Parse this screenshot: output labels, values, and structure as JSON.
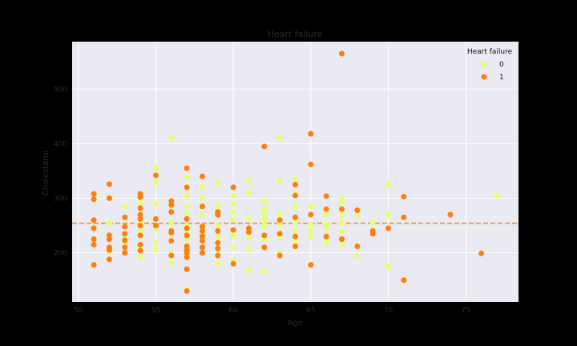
{
  "chart_data": {
    "type": "scatter",
    "title": "Heart failure",
    "xlabel": "Age",
    "ylabel": "Cholesterol",
    "xlim": [
      49.6,
      78.4
    ],
    "ylim": [
      110,
      587
    ],
    "xticks": [
      50,
      55,
      60,
      65,
      70,
      75
    ],
    "yticks": [
      200,
      300,
      400,
      500
    ],
    "grid": true,
    "plot_background": "#eaeaf2",
    "figure_background": "#000000",
    "legend": {
      "title": "Heart failure",
      "placement": "top-right"
    },
    "reference_line": {
      "axis": "y",
      "value": 254,
      "style": "dashed",
      "color": "#ff8c00"
    },
    "series": [
      {
        "name": "0",
        "color": "#e6ff70",
        "points": [
          [
            51,
            302
          ],
          [
            51,
            298
          ],
          [
            51,
            308
          ],
          [
            52,
            255
          ],
          [
            52,
            210
          ],
          [
            52,
            202
          ],
          [
            53,
            285
          ],
          [
            53,
            232
          ],
          [
            53,
            220
          ],
          [
            54,
            290
          ],
          [
            54,
            255
          ],
          [
            54,
            240
          ],
          [
            54,
            210
          ],
          [
            54,
            192
          ],
          [
            55,
            355
          ],
          [
            55,
            330
          ],
          [
            55,
            290
          ],
          [
            55,
            245
          ],
          [
            55,
            218
          ],
          [
            55,
            205
          ],
          [
            56,
            410
          ],
          [
            56,
            285
          ],
          [
            56,
            255
          ],
          [
            56,
            235
          ],
          [
            56,
            200
          ],
          [
            56,
            182
          ],
          [
            57,
            338
          ],
          [
            57,
            305
          ],
          [
            57,
            285
          ],
          [
            57,
            270
          ],
          [
            57,
            250
          ],
          [
            57,
            240
          ],
          [
            57,
            225
          ],
          [
            57,
            210
          ],
          [
            57,
            198
          ],
          [
            57,
            133
          ],
          [
            58,
            320
          ],
          [
            58,
            300
          ],
          [
            58,
            285
          ],
          [
            58,
            270
          ],
          [
            58,
            245
          ],
          [
            58,
            235
          ],
          [
            58,
            225
          ],
          [
            58,
            210
          ],
          [
            59,
            328
          ],
          [
            59,
            285
          ],
          [
            59,
            268
          ],
          [
            59,
            250
          ],
          [
            59,
            240
          ],
          [
            59,
            228
          ],
          [
            59,
            218
          ],
          [
            59,
            205
          ],
          [
            59,
            180
          ],
          [
            60,
            305
          ],
          [
            60,
            290
          ],
          [
            60,
            275
          ],
          [
            60,
            260
          ],
          [
            60,
            240
          ],
          [
            60,
            230
          ],
          [
            60,
            210
          ],
          [
            60,
            187
          ],
          [
            61,
            332
          ],
          [
            61,
            310
          ],
          [
            61,
            262
          ],
          [
            61,
            245
          ],
          [
            61,
            228
          ],
          [
            61,
            207
          ],
          [
            61,
            168
          ],
          [
            62,
            295
          ],
          [
            62,
            280
          ],
          [
            62,
            270
          ],
          [
            62,
            262
          ],
          [
            62,
            255
          ],
          [
            62,
            248
          ],
          [
            62,
            225
          ],
          [
            62,
            166
          ],
          [
            63,
            410
          ],
          [
            63,
            332
          ],
          [
            63,
            270
          ],
          [
            63,
            255
          ],
          [
            63,
            250
          ],
          [
            63,
            230
          ],
          [
            63,
            200
          ],
          [
            64,
            335
          ],
          [
            64,
            310
          ],
          [
            64,
            285
          ],
          [
            64,
            255
          ],
          [
            64,
            240
          ],
          [
            64,
            220
          ],
          [
            64,
            214
          ],
          [
            65,
            285
          ],
          [
            65,
            252
          ],
          [
            65,
            240
          ],
          [
            65,
            228
          ],
          [
            66,
            270
          ],
          [
            66,
            252
          ],
          [
            66,
            245
          ],
          [
            66,
            225
          ],
          [
            66,
            218
          ],
          [
            67,
            300
          ],
          [
            67,
            295
          ],
          [
            67,
            282
          ],
          [
            67,
            270
          ],
          [
            67,
            255
          ],
          [
            67,
            238
          ],
          [
            67,
            225
          ],
          [
            67,
            215
          ],
          [
            68,
            278
          ],
          [
            68,
            268
          ],
          [
            68,
            195
          ],
          [
            69,
            255
          ],
          [
            69,
            240
          ],
          [
            70,
            325
          ],
          [
            70,
            270
          ],
          [
            70,
            175
          ],
          [
            77,
            305
          ]
        ]
      },
      {
        "name": "1",
        "color": "#ff7f0e",
        "points": [
          [
            51,
            308
          ],
          [
            51,
            298
          ],
          [
            51,
            260
          ],
          [
            51,
            245
          ],
          [
            51,
            225
          ],
          [
            51,
            215
          ],
          [
            51,
            178
          ],
          [
            52,
            326
          ],
          [
            52,
            300
          ],
          [
            52,
            232
          ],
          [
            52,
            225
          ],
          [
            52,
            210
          ],
          [
            52,
            205
          ],
          [
            52,
            188
          ],
          [
            53,
            265
          ],
          [
            53,
            248
          ],
          [
            53,
            235
          ],
          [
            53,
            223
          ],
          [
            53,
            210
          ],
          [
            53,
            200
          ],
          [
            54,
            308
          ],
          [
            54,
            302
          ],
          [
            54,
            282
          ],
          [
            54,
            270
          ],
          [
            54,
            262
          ],
          [
            54,
            250
          ],
          [
            54,
            232
          ],
          [
            54,
            215
          ],
          [
            54,
            204
          ],
          [
            55,
            342
          ],
          [
            55,
            262
          ],
          [
            55,
            250
          ],
          [
            56,
            295
          ],
          [
            56,
            288
          ],
          [
            56,
            275
          ],
          [
            56,
            240
          ],
          [
            56,
            237
          ],
          [
            56,
            222
          ],
          [
            56,
            195
          ],
          [
            57,
            355
          ],
          [
            57,
            320
          ],
          [
            57,
            262
          ],
          [
            57,
            245
          ],
          [
            57,
            232
          ],
          [
            57,
            212
          ],
          [
            57,
            205
          ],
          [
            57,
            200
          ],
          [
            57,
            192
          ],
          [
            57,
            170
          ],
          [
            57,
            130
          ],
          [
            58,
            340
          ],
          [
            58,
            285
          ],
          [
            58,
            248
          ],
          [
            58,
            240
          ],
          [
            58,
            230
          ],
          [
            58,
            222
          ],
          [
            58,
            210
          ],
          [
            58,
            200
          ],
          [
            59,
            275
          ],
          [
            59,
            270
          ],
          [
            59,
            240
          ],
          [
            59,
            218
          ],
          [
            59,
            208
          ],
          [
            59,
            195
          ],
          [
            60,
            320
          ],
          [
            60,
            242
          ],
          [
            60,
            180
          ],
          [
            61,
            245
          ],
          [
            61,
            238
          ],
          [
            62,
            395
          ],
          [
            62,
            232
          ],
          [
            62,
            210
          ],
          [
            63,
            260
          ],
          [
            63,
            235
          ],
          [
            63,
            195
          ],
          [
            64,
            325
          ],
          [
            64,
            305
          ],
          [
            64,
            265
          ],
          [
            64,
            230
          ],
          [
            64,
            212
          ],
          [
            65,
            418
          ],
          [
            65,
            362
          ],
          [
            65,
            270
          ],
          [
            65,
            178
          ],
          [
            66,
            304
          ],
          [
            66,
            280
          ],
          [
            66,
            230
          ],
          [
            67,
            565
          ],
          [
            67,
            280
          ],
          [
            67,
            225
          ],
          [
            68,
            278
          ],
          [
            68,
            212
          ],
          [
            69,
            240
          ],
          [
            69,
            235
          ],
          [
            70,
            245
          ],
          [
            71,
            303
          ],
          [
            71,
            265
          ],
          [
            71,
            150
          ],
          [
            74,
            270
          ],
          [
            76,
            199
          ]
        ]
      }
    ]
  }
}
